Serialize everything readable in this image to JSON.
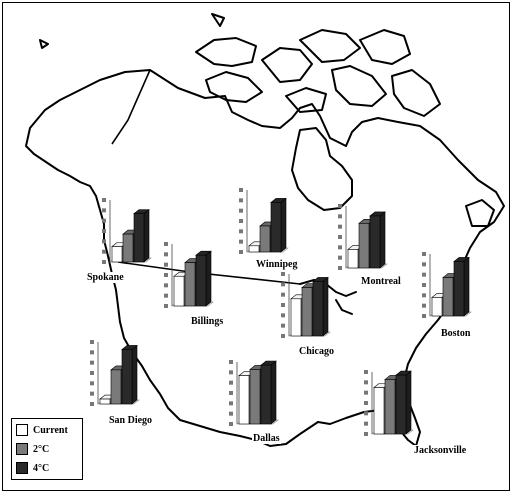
{
  "scenarios": [
    {
      "key": "current",
      "label": "Current",
      "color": "#ffffff"
    },
    {
      "key": "plus2",
      "label": "2°C",
      "color": "#7a7a7a"
    },
    {
      "key": "plus4",
      "label": "4°C",
      "color": "#2a2a2a"
    }
  ],
  "cities": [
    {
      "name": "Spokane",
      "values": [
        0.25,
        0.45,
        0.78
      ]
    },
    {
      "name": "Winnipeg",
      "values": [
        0.1,
        0.42,
        0.8
      ]
    },
    {
      "name": "Montreal",
      "values": [
        0.3,
        0.72,
        0.84
      ]
    },
    {
      "name": "Billings",
      "values": [
        0.48,
        0.7,
        0.82
      ]
    },
    {
      "name": "Chicago",
      "values": [
        0.6,
        0.78,
        0.88
      ]
    },
    {
      "name": "Boston",
      "values": [
        0.3,
        0.62,
        0.88
      ]
    },
    {
      "name": "San Diego",
      "values": [
        0.08,
        0.55,
        0.88
      ]
    },
    {
      "name": "Dallas",
      "values": [
        0.78,
        0.88,
        0.95
      ]
    },
    {
      "name": "Jacksonville",
      "values": [
        0.75,
        0.88,
        0.95
      ]
    }
  ]
}
